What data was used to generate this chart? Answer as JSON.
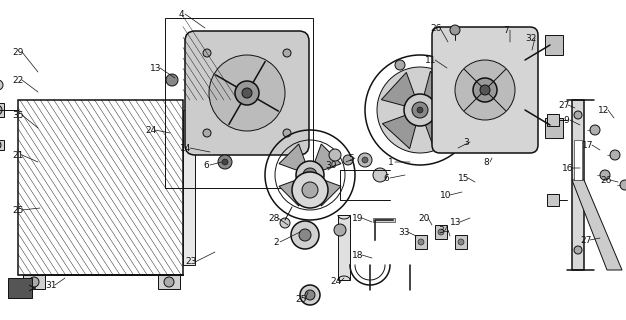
{
  "fig_width": 6.26,
  "fig_height": 3.2,
  "dpi": 100,
  "bg_color": "#ffffff",
  "image_b64": ""
}
